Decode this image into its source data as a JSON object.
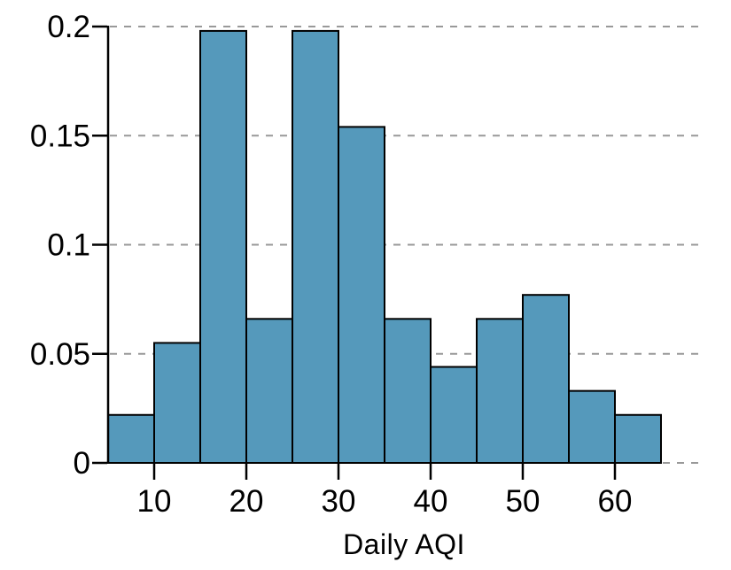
{
  "chart_data": {
    "type": "histogram",
    "title": "",
    "xlabel": "Daily AQI",
    "ylabel": "",
    "bin_width": 5,
    "bin_edges": [
      5,
      10,
      15,
      20,
      25,
      30,
      35,
      40,
      45,
      50,
      55,
      60,
      65
    ],
    "values": [
      0.022,
      0.055,
      0.198,
      0.066,
      0.198,
      0.154,
      0.066,
      0.044,
      0.066,
      0.077,
      0.033,
      0.022
    ],
    "x_ticks": [
      10,
      20,
      30,
      40,
      50,
      60
    ],
    "x_tick_labels": [
      "10",
      "20",
      "30",
      "40",
      "50",
      "60"
    ],
    "y_ticks": [
      0,
      0.05,
      0.1,
      0.15,
      0.2
    ],
    "y_tick_labels": [
      "0",
      "0.05",
      "0.1",
      "0.15",
      "0.2"
    ],
    "xlim": [
      5,
      65
    ],
    "ylim": [
      0,
      0.2
    ],
    "grid": "horizontal-dashed",
    "legend": "none",
    "colors": {
      "bar_fill": "#5599BB",
      "bar_stroke": "#000000",
      "gridline": "#999999",
      "axis": "#000000",
      "text": "#000000",
      "background": "#ffffff"
    }
  }
}
